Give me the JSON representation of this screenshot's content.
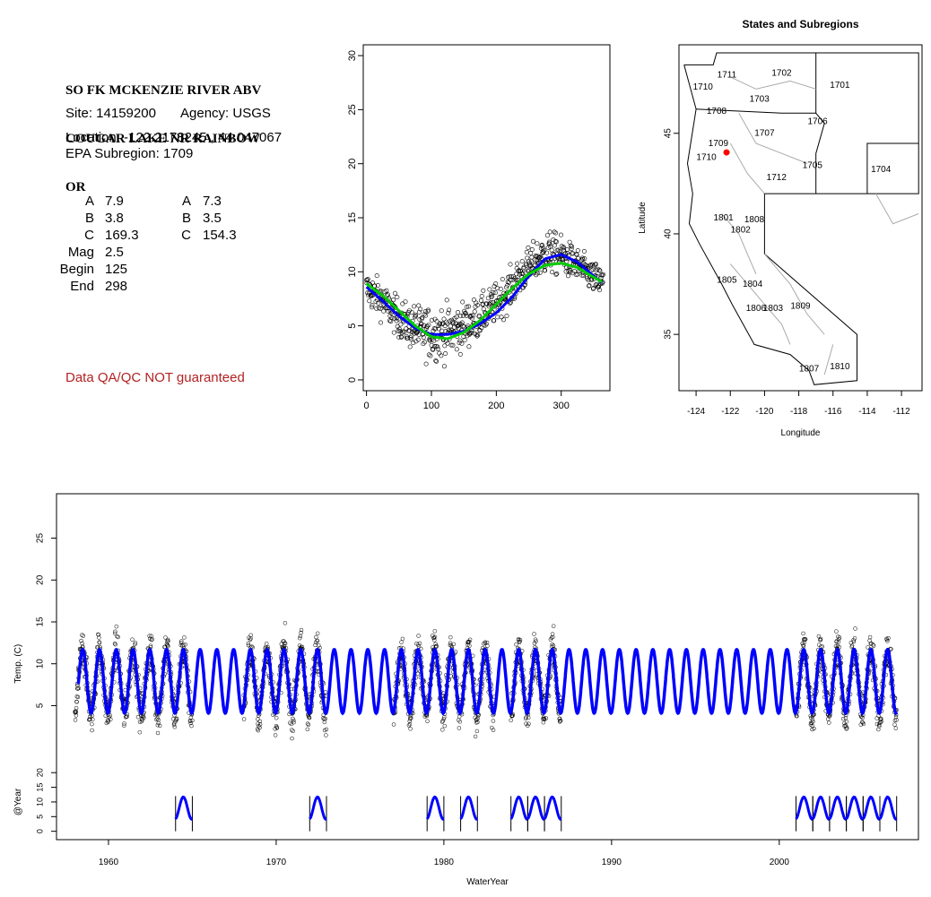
{
  "site": {
    "title_lines": [
      "SO FK MCKENZIE RIVER ABV",
      "COUGAR LAKE NR RAINBOW",
      "OR"
    ],
    "site_label": "Site: 14159200",
    "agency_label": "Agency: USGS",
    "location_label": "Location: -122.2178245 , 44.047067",
    "subregion_label": "EPA Subregion: 1709",
    "qa_note": "Data QA/QC NOT guaranteed"
  },
  "params": {
    "col1": [
      {
        "label": "A",
        "value": "7.9"
      },
      {
        "label": "B",
        "value": "3.8"
      },
      {
        "label": "C",
        "value": "169.3"
      },
      {
        "label": "Mag",
        "value": "2.5"
      },
      {
        "label": "Begin",
        "value": "125"
      },
      {
        "label": "End",
        "value": "298"
      }
    ],
    "col2": [
      {
        "label": "A",
        "value": "7.3"
      },
      {
        "label": "B",
        "value": "3.5"
      },
      {
        "label": "C",
        "value": "154.3"
      }
    ]
  },
  "chart_data": [
    {
      "type": "scatter",
      "name": "day-of-year",
      "title": "",
      "xlabel": "",
      "ylabel": "",
      "xlim": [
        -5,
        375
      ],
      "ylim": [
        -1,
        31
      ],
      "xticks": [
        0,
        100,
        200,
        300
      ],
      "yticks": [
        0,
        5,
        10,
        15,
        20,
        25,
        30
      ],
      "series": [
        {
          "kind": "points",
          "color": "#000000",
          "x": [
            0,
            20,
            40,
            60,
            80,
            100,
            120,
            140,
            160,
            180,
            200,
            220,
            240,
            260,
            280,
            300,
            320,
            340,
            360
          ],
          "y": [
            8.4,
            7.6,
            6.3,
            5.2,
            4.6,
            4.3,
            4.4,
            4.7,
            5.3,
            6.1,
            7.1,
            8.3,
            9.8,
            11.0,
            11.8,
            11.5,
            10.8,
            9.9,
            9.0
          ],
          "spread": [
            1.5,
            1.5,
            1.5,
            1.7,
            2.0,
            2.2,
            2.2,
            2.0,
            1.8,
            1.6,
            1.6,
            1.6,
            1.6,
            1.6,
            1.8,
            1.6,
            1.4,
            1.3,
            1.3
          ]
        },
        {
          "kind": "line",
          "color": "#0000ff",
          "x": [
            0,
            25,
            50,
            75,
            100,
            125,
            150,
            175,
            200,
            225,
            250,
            275,
            300,
            325,
            350,
            365
          ],
          "y": [
            8.6,
            7.3,
            5.9,
            4.8,
            4.2,
            4.2,
            4.5,
            5.2,
            6.2,
            7.7,
            9.6,
            11.2,
            11.6,
            10.9,
            9.6,
            8.9
          ]
        },
        {
          "kind": "line",
          "color": "#00cc00",
          "x": [
            0,
            25,
            50,
            75,
            100,
            125,
            150,
            175,
            200,
            225,
            250,
            275,
            300,
            325,
            350,
            365
          ],
          "y": [
            8.9,
            7.8,
            6.4,
            5.0,
            4.0,
            3.8,
            4.4,
            5.5,
            7.0,
            8.5,
            9.8,
            10.6,
            10.8,
            10.4,
            9.5,
            9.0
          ]
        }
      ]
    },
    {
      "type": "map",
      "name": "states-subregions",
      "title": "States and Subregions",
      "xlabel": "Longitude",
      "ylabel": "Latitude",
      "xlim": [
        -125.0,
        -110.8
      ],
      "ylim": [
        32.2,
        49.4
      ],
      "xticks": [
        -124,
        -122,
        -120,
        -118,
        -116,
        -114,
        -112
      ],
      "yticks": [
        35,
        40,
        45
      ],
      "regions": [
        {
          "label": "1711",
          "x": -122.2,
          "y": 47.9
        },
        {
          "label": "1702",
          "x": -119.0,
          "y": 48.0
        },
        {
          "label": "1701",
          "x": -115.6,
          "y": 47.4
        },
        {
          "label": "1710",
          "x": -123.6,
          "y": 47.3
        },
        {
          "label": "1703",
          "x": -120.3,
          "y": 46.7
        },
        {
          "label": "1708",
          "x": -122.8,
          "y": 46.1
        },
        {
          "label": "1706",
          "x": -116.9,
          "y": 45.6
        },
        {
          "label": "1707",
          "x": -120.0,
          "y": 45.0
        },
        {
          "label": "1709",
          "x": -122.7,
          "y": 44.5
        },
        {
          "label": "1710",
          "x": -123.4,
          "y": 43.8
        },
        {
          "label": "1705",
          "x": -117.2,
          "y": 43.4
        },
        {
          "label": "1704",
          "x": -113.2,
          "y": 43.2
        },
        {
          "label": "1712",
          "x": -119.3,
          "y": 42.8
        },
        {
          "label": "1801",
          "x": -122.4,
          "y": 40.8
        },
        {
          "label": "1808",
          "x": -120.6,
          "y": 40.7
        },
        {
          "label": "1802",
          "x": -121.4,
          "y": 40.2
        },
        {
          "label": "1805",
          "x": -122.2,
          "y": 37.7
        },
        {
          "label": "1804",
          "x": -120.7,
          "y": 37.5
        },
        {
          "label": "1809",
          "x": -117.9,
          "y": 36.4
        },
        {
          "label": "1806",
          "x": -120.5,
          "y": 36.3
        },
        {
          "label": "1803",
          "x": -119.5,
          "y": 36.3
        },
        {
          "label": "1810",
          "x": -115.6,
          "y": 33.4
        },
        {
          "label": "1807",
          "x": -117.4,
          "y": 33.3
        }
      ],
      "site_point": {
        "x": -122.22,
        "y": 44.05,
        "color": "#ff0000"
      }
    },
    {
      "type": "scatter",
      "name": "timeseries",
      "title": "",
      "xlabel": "WaterYear",
      "ylabel": "Temp. (C)",
      "ylabel2": "@Year",
      "xlim": [
        1956.9,
        2008.3
      ],
      "ylim": [
        -11.0,
        30.3
      ],
      "xticks": [
        1960,
        1970,
        1980,
        1990,
        2000
      ],
      "yticks": [
        5,
        10,
        15,
        20,
        25
      ],
      "yticks2": [
        0,
        5,
        10,
        15,
        20
      ],
      "model_years": [
        1958,
        2007
      ],
      "model": {
        "mean": 7.9,
        "amp": 3.8,
        "peak_day": 169.3,
        "color": "#0000ff"
      },
      "data_periods": [
        [
          1958,
          1965
        ],
        [
          1968,
          1973
        ],
        [
          1977,
          1983
        ],
        [
          1984,
          1987
        ],
        [
          2001,
          2007
        ]
      ],
      "year_mini": [
        1964,
        1972,
        1979,
        1981,
        1984,
        1985,
        1986,
        2001,
        2002,
        2003,
        2004,
        2005,
        2006
      ],
      "mini_baseline": -10.0,
      "mini_scale": 0.35
    }
  ]
}
